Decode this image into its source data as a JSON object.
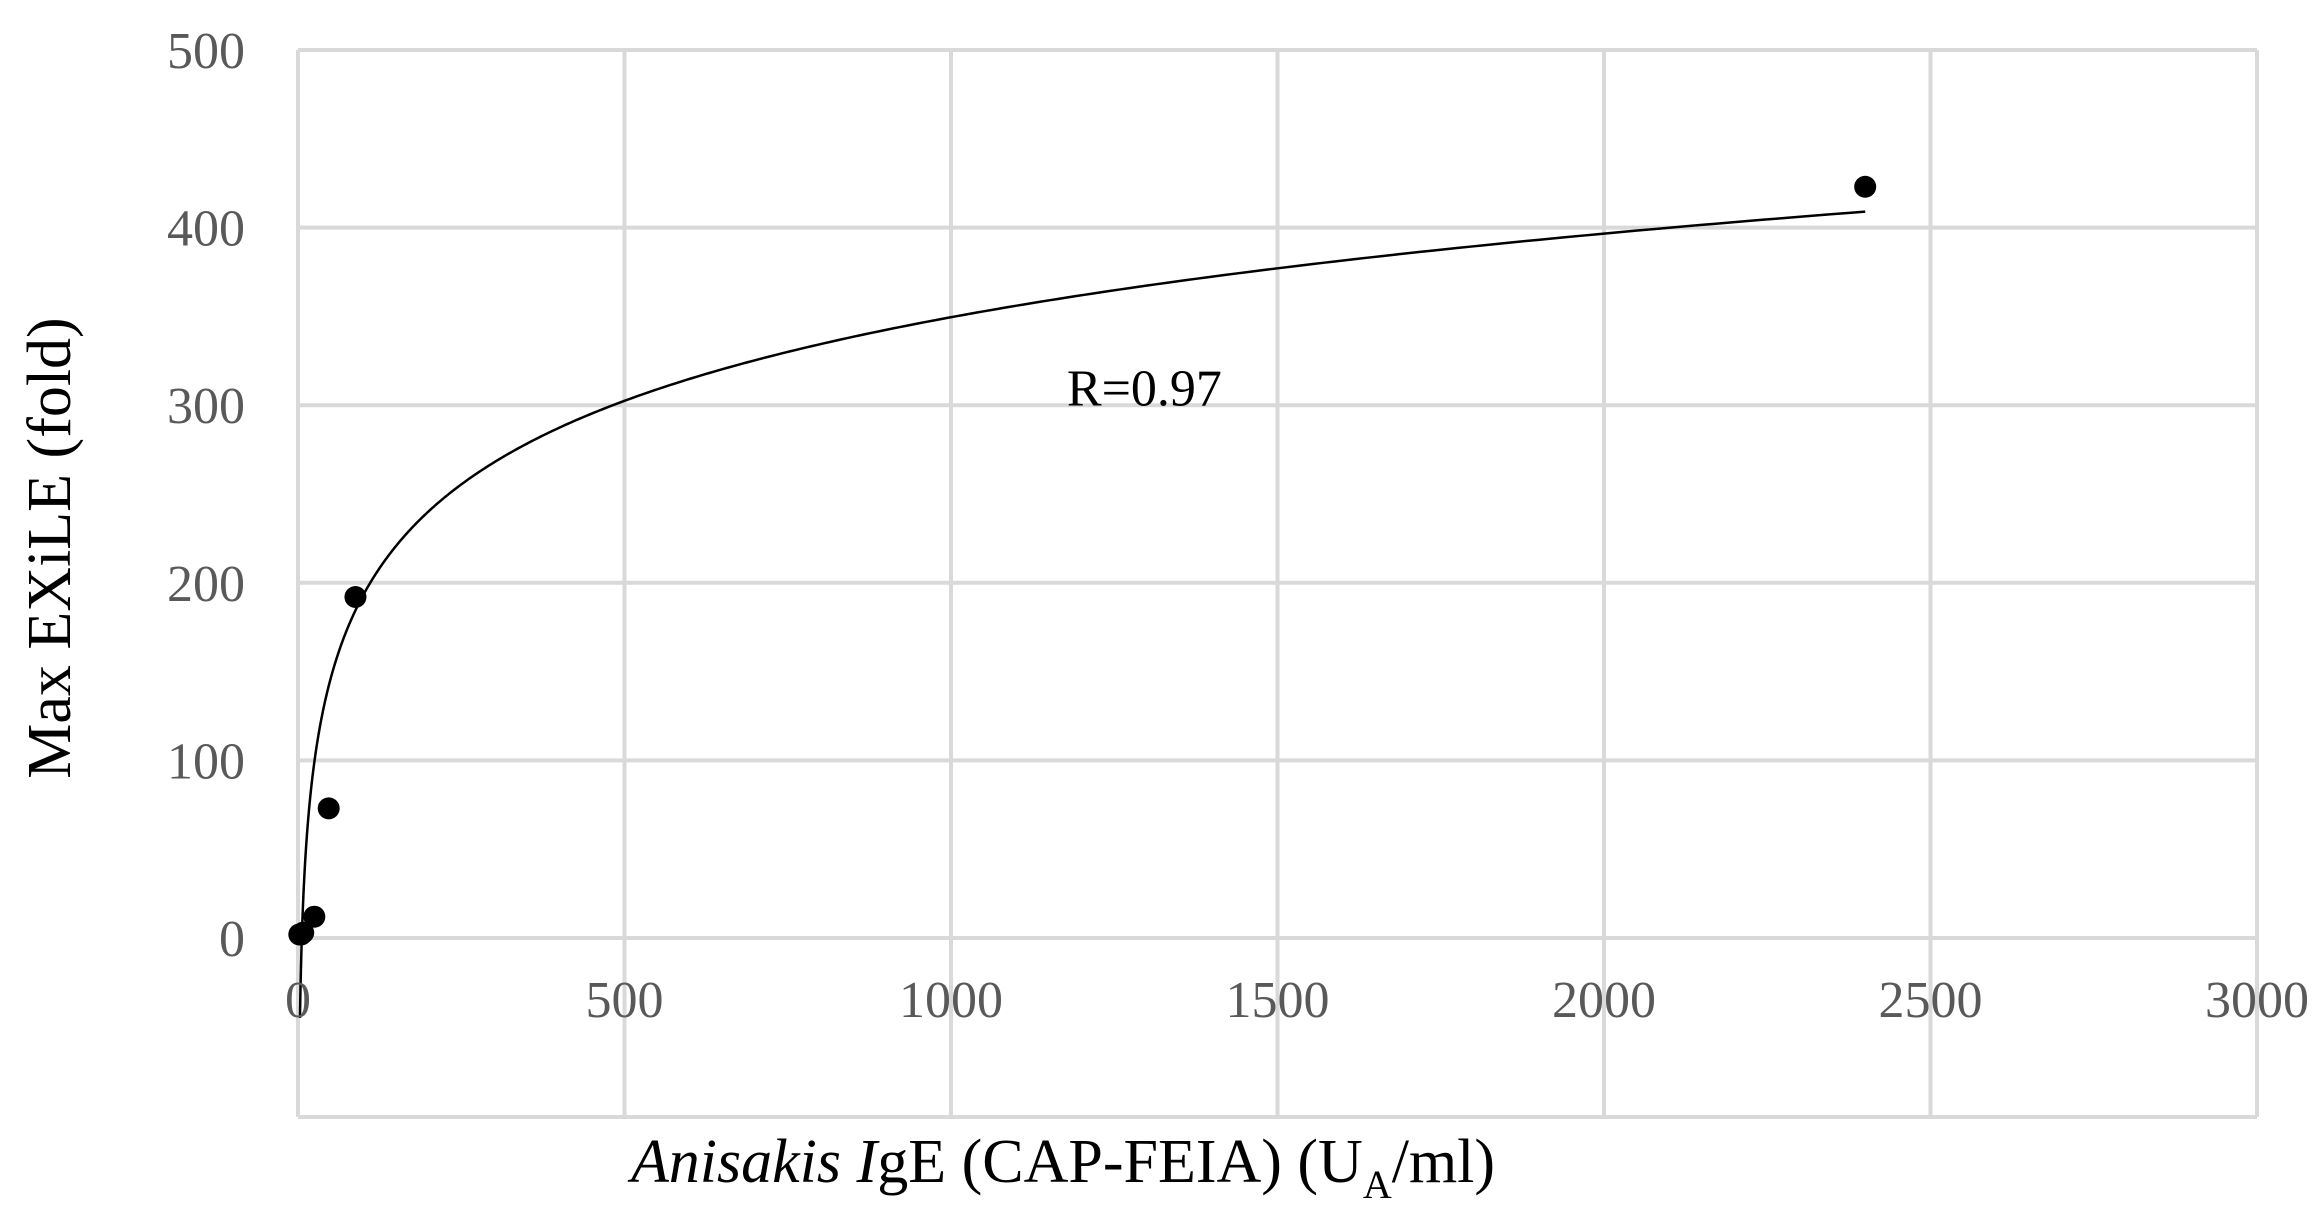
{
  "chart_data": {
    "type": "scatter",
    "title": "",
    "xlabel_parts": [
      {
        "text": "Anisakis ",
        "italic": true
      },
      {
        "text": "I",
        "italic": true
      },
      {
        "text": "gE (CAP-FEIA) (U",
        "italic": false
      },
      {
        "text": "A",
        "italic": false,
        "subscript": true
      },
      {
        "text": "/ml)",
        "italic": false
      }
    ],
    "ylabel": "Max EXiLE (fold)",
    "xlim": [
      0,
      3000
    ],
    "ylim": [
      0,
      500
    ],
    "x_ticks": [
      0,
      500,
      1000,
      1500,
      2000,
      2500,
      3000
    ],
    "y_ticks": [
      0,
      100,
      200,
      300,
      400,
      500
    ],
    "x_tick_labels": [
      "0",
      "500",
      "1000",
      "1500",
      "2000",
      "2500",
      "3000"
    ],
    "y_tick_labels": [
      "0",
      "100",
      "200",
      "300",
      "400",
      "500"
    ],
    "grid": true,
    "legend": "none",
    "series": [
      {
        "points": [
          {
            "x": 2,
            "y": 2
          },
          {
            "x": 5,
            "y": 2
          },
          {
            "x": 8,
            "y": 3
          },
          {
            "x": 25,
            "y": 12
          },
          {
            "x": 47,
            "y": 73
          },
          {
            "x": 88,
            "y": 192
          },
          {
            "x": 2400,
            "y": 423
          }
        ],
        "color": "#000000"
      }
    ],
    "trendline": {
      "type": "logarithmic",
      "x_range": [
        3,
        2400
      ],
      "y_range": [
        -45,
        409
      ]
    },
    "annotations": [
      {
        "text": "R=0.97",
        "x": 1300,
        "y": 310
      }
    ]
  }
}
